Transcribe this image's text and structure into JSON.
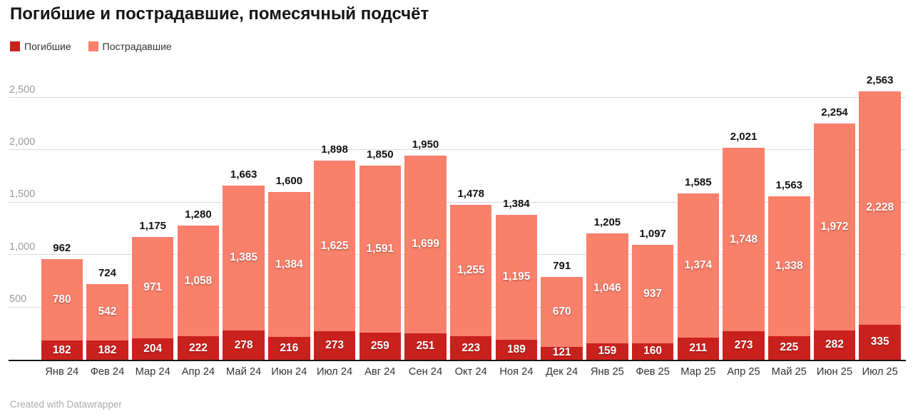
{
  "title": "Погибшие и пострадавшие, помесячный подсчёт",
  "legend": {
    "items": [
      {
        "label": "Погибшие",
        "color": "#c9211e"
      },
      {
        "label": "Пострадавшие",
        "color": "#f9806b"
      }
    ]
  },
  "footer": {
    "attribution": "Created with Datawrapper"
  },
  "chart_data": {
    "type": "bar",
    "stacked": true,
    "title": "Погибшие и пострадавшие, помесячный подсчёт",
    "xlabel": "",
    "ylabel": "",
    "ylim": [
      0,
      2500
    ],
    "y_ticks": [
      500,
      1000,
      1500,
      2000,
      2500
    ],
    "grid": true,
    "legend_position": "top-left",
    "number_format": "thousands-comma",
    "categories": [
      "Янв 24",
      "Фев 24",
      "Мар 24",
      "Апр 24",
      "Май 24",
      "Июн 24",
      "Июл 24",
      "Авг 24",
      "Сен 24",
      "Окт 24",
      "Ноя 24",
      "Дек 24",
      "Янв 25",
      "Фев 25",
      "Мар 25",
      "Апр 25",
      "Май 25",
      "Июн 25",
      "Июл 25"
    ],
    "series": [
      {
        "name": "Погибшие",
        "color": "#c9211e",
        "values": [
          182,
          182,
          204,
          222,
          278,
          216,
          273,
          259,
          251,
          223,
          189,
          121,
          159,
          160,
          211,
          273,
          225,
          282,
          335
        ]
      },
      {
        "name": "Пострадавшие",
        "color": "#f9806b",
        "values": [
          780,
          542,
          971,
          1058,
          1385,
          1384,
          1625,
          1591,
          1699,
          1255,
          1195,
          670,
          1046,
          937,
          1374,
          1748,
          1338,
          1972,
          2228
        ]
      }
    ],
    "totals": [
      962,
      724,
      1175,
      1280,
      1663,
      1600,
      1898,
      1850,
      1950,
      1478,
      1384,
      791,
      1205,
      1097,
      1585,
      2021,
      1563,
      2254,
      2563
    ]
  }
}
